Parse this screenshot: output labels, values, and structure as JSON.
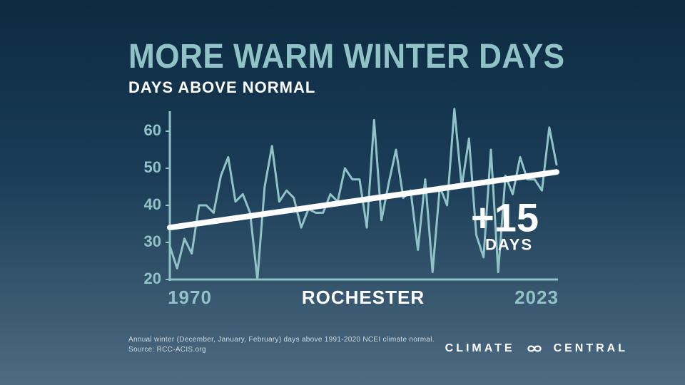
{
  "title": "MORE WARM WINTER DAYS",
  "subtitle": "DAYS ABOVE NORMAL",
  "colors": {
    "bg_top": "#0c2a42",
    "bg_bottom": "#4d6b82",
    "accent": "#8fc3c6",
    "ticks": "#8fc3c6",
    "series": "#8fc3c6",
    "trend": "#ffffff",
    "text_white": "#ffffff",
    "text_muted": "#cfd9df"
  },
  "chart": {
    "type": "line",
    "x_start": 1970,
    "x_end": 2023,
    "city": "ROCHESTER",
    "ylim": [
      20,
      65
    ],
    "yticks": [
      20,
      30,
      40,
      50,
      60
    ],
    "series": [
      29,
      23,
      31,
      27,
      40,
      40,
      38,
      48,
      53,
      41,
      43,
      38,
      20,
      45,
      56,
      41,
      44,
      42,
      34,
      39,
      38,
      38,
      43,
      41,
      50,
      47,
      47,
      34,
      63,
      36,
      46,
      55,
      42,
      44,
      28,
      47,
      22,
      45,
      40,
      66,
      45,
      58,
      32,
      26,
      55,
      22,
      48,
      43,
      53,
      47,
      47,
      44,
      61,
      51
    ],
    "trend": {
      "y_start": 34,
      "y_end": 49
    },
    "delta_number": "+15",
    "delta_unit": "DAYS",
    "line_width": 3,
    "trend_width": 8,
    "axis_width": 3,
    "tick_len": 6,
    "tick_label_fontsize": 22,
    "xlabel_fontsize": 26
  },
  "footnote_line1": "Annual winter (December, January, February) days above 1991-2020 NCEI climate normal.",
  "footnote_line2": "Source: RCC-ACIS.org",
  "brand_left": "CLIMATE",
  "brand_right": "CENTRAL"
}
